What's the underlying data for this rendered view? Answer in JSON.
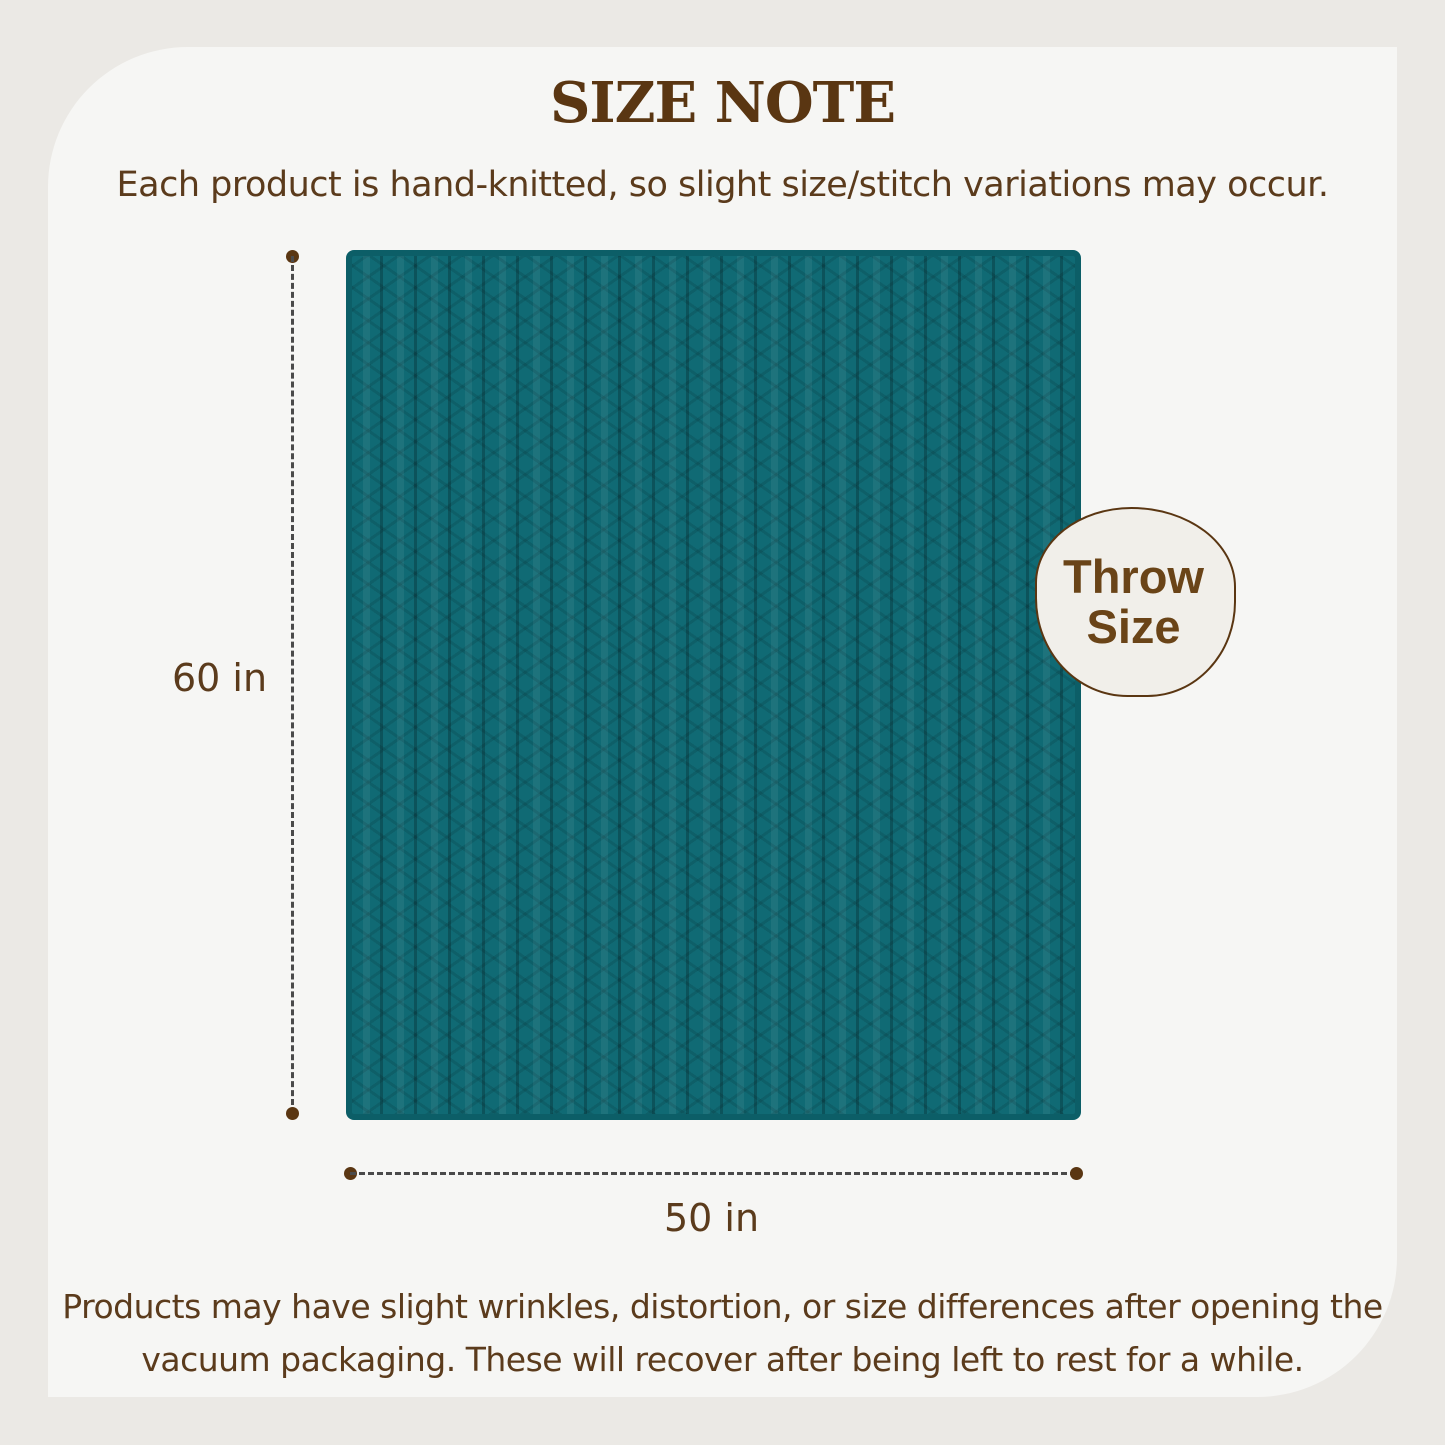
{
  "title": "SIZE NOTE",
  "subtitle": "Each product is hand-knitted, so slight size/stitch variations may occur.",
  "product": {
    "color": "#106a74"
  },
  "dimensions": {
    "height": "60 in",
    "width": "50 in"
  },
  "badge": {
    "line1": "Throw",
    "line2": "Size"
  },
  "note": {
    "line1": "Products may have slight wrinkles, distortion, or size differences after opening the",
    "line2": "vacuum packaging. These will recover after being left to rest for a while."
  }
}
